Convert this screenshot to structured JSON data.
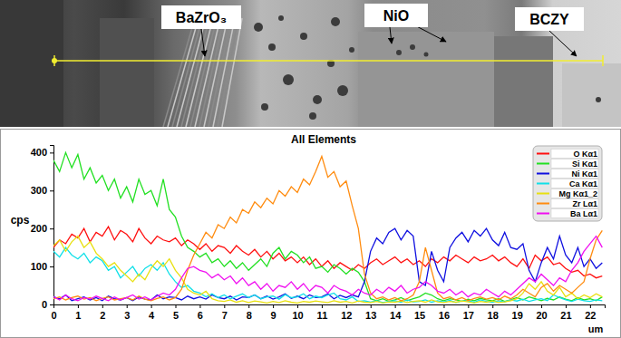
{
  "chart_data": {
    "type": "line",
    "title": "All Elements",
    "y_label": "cps",
    "x_label": "um",
    "annotations": [
      "BaZrO₃",
      "NiO",
      "BCZY"
    ],
    "grid": false,
    "legend": "top-right",
    "xlim": [
      0,
      22.6
    ],
    "xticks": [
      0,
      1,
      2,
      3,
      4,
      5,
      6,
      7,
      8,
      9,
      10,
      11,
      12,
      13,
      14,
      15,
      16,
      17,
      18,
      19,
      20,
      21,
      22
    ],
    "ylim": [
      0,
      420
    ],
    "yticks": [
      0,
      100,
      200,
      300,
      400
    ],
    "x": [
      0,
      0.25,
      0.5,
      0.75,
      1,
      1.25,
      1.5,
      1.75,
      2,
      2.25,
      2.5,
      2.75,
      3,
      3.25,
      3.5,
      3.75,
      4,
      4.25,
      4.5,
      4.75,
      5,
      5.25,
      5.5,
      5.75,
      6,
      6.25,
      6.5,
      6.75,
      7,
      7.25,
      7.5,
      7.75,
      8,
      8.25,
      8.5,
      8.75,
      9,
      9.25,
      9.5,
      9.75,
      10,
      10.25,
      10.5,
      10.75,
      11,
      11.25,
      11.5,
      11.75,
      12,
      12.25,
      12.5,
      12.75,
      13,
      13.25,
      13.5,
      13.75,
      14,
      14.25,
      14.5,
      14.75,
      15,
      15.25,
      15.5,
      15.75,
      16,
      16.25,
      16.5,
      16.75,
      17,
      17.25,
      17.5,
      17.75,
      18,
      18.25,
      18.5,
      18.75,
      19,
      19.25,
      19.5,
      19.75,
      20,
      20.25,
      20.5,
      20.75,
      21,
      21.25,
      21.5,
      21.75,
      22,
      22.25,
      22.5
    ],
    "series": [
      {
        "name": "O Kα1",
        "color": "#ff1010",
        "values": [
          150,
          170,
          160,
          185,
          175,
          200,
          165,
          190,
          180,
          205,
          170,
          195,
          185,
          165,
          200,
          175,
          160,
          180,
          170,
          165,
          175,
          155,
          170,
          160,
          145,
          160,
          140,
          155,
          150,
          135,
          155,
          140,
          130,
          145,
          125,
          140,
          120,
          135,
          115,
          125,
          110,
          125,
          105,
          120,
          100,
          115,
          95,
          110,
          100,
          90,
          105,
          95,
          110,
          120,
          105,
          115,
          125,
          110,
          120,
          105,
          115,
          100,
          120,
          110,
          125,
          115,
          130,
          120,
          110,
          125,
          115,
          120,
          130,
          115,
          125,
          110,
          100,
          120,
          95,
          130,
          115,
          125,
          105,
          110,
          95,
          85,
          90,
          75,
          80,
          70,
          75
        ]
      },
      {
        "name": "Si Kα1",
        "color": "#22e022",
        "values": [
          380,
          350,
          400,
          360,
          395,
          330,
          360,
          320,
          340,
          300,
          330,
          280,
          310,
          270,
          330,
          290,
          300,
          260,
          330,
          250,
          230,
          180,
          150,
          140,
          125,
          135,
          110,
          120,
          100,
          115,
          95,
          110,
          90,
          105,
          120,
          100,
          135,
          150,
          120,
          140,
          130,
          110,
          125,
          95,
          100,
          85,
          105,
          95,
          80,
          95,
          85,
          60,
          15,
          10,
          15,
          8,
          12,
          18,
          10,
          15,
          20,
          30,
          25,
          15,
          10,
          15,
          12,
          8,
          14,
          10,
          16,
          12,
          10,
          15,
          8,
          12,
          18,
          12,
          20,
          15,
          10,
          16,
          12,
          20,
          14,
          10,
          18,
          12,
          15,
          10,
          20
        ]
      },
      {
        "name": "Ni Kα1",
        "color": "#1010e0",
        "values": [
          20,
          15,
          25,
          10,
          15,
          20,
          12,
          18,
          10,
          22,
          15,
          12,
          18,
          10,
          20,
          14,
          12,
          25,
          15,
          20,
          18,
          12,
          22,
          15,
          20,
          14,
          25,
          18,
          15,
          22,
          12,
          20,
          18,
          25,
          15,
          22,
          14,
          20,
          28,
          16,
          22,
          15,
          25,
          18,
          20,
          28,
          15,
          24,
          18,
          25,
          20,
          60,
          140,
          175,
          160,
          190,
          200,
          170,
          195,
          180,
          60,
          50,
          140,
          90,
          60,
          150,
          175,
          190,
          165,
          195,
          180,
          200,
          170,
          155,
          190,
          150,
          145,
          160,
          90,
          60,
          110,
          150,
          120,
          180,
          130,
          110,
          150,
          100,
          120,
          95,
          110
        ]
      },
      {
        "name": "Ca Kα1",
        "color": "#10e0e8",
        "values": [
          140,
          125,
          150,
          130,
          120,
          135,
          110,
          125,
          115,
          90,
          100,
          70,
          85,
          100,
          75,
          95,
          105,
          90,
          110,
          80,
          60,
          45,
          50,
          35,
          30,
          20,
          28,
          18,
          25,
          15,
          22,
          28,
          18,
          25,
          15,
          20,
          22,
          14,
          26,
          18,
          20,
          28,
          15,
          22,
          18,
          25,
          30,
          15,
          12,
          20,
          8,
          10,
          6,
          10,
          5,
          8,
          10,
          6,
          12,
          7,
          8,
          12,
          6,
          10,
          7,
          11,
          5,
          9,
          10,
          6,
          12,
          8,
          6,
          10,
          7,
          12,
          9,
          14,
          8,
          12,
          15,
          10,
          25,
          18,
          12,
          8,
          14,
          10,
          8,
          12,
          10
        ]
      },
      {
        "name": "Mg Kα1_2",
        "color": "#e8e010",
        "values": [
          155,
          170,
          140,
          165,
          180,
          150,
          165,
          135,
          120,
          100,
          110,
          90,
          75,
          60,
          80,
          65,
          95,
          115,
          100,
          120,
          90,
          70,
          40,
          30,
          25,
          35,
          15,
          10,
          8,
          12,
          6,
          10,
          5,
          9,
          7,
          4,
          8,
          5,
          10,
          6,
          4,
          8,
          6,
          9,
          7,
          5,
          10,
          6,
          8,
          4,
          9,
          6,
          5,
          8,
          4,
          7,
          6,
          9,
          5,
          8,
          10,
          6,
          12,
          7,
          5,
          8,
          6,
          9,
          7,
          4,
          8,
          6,
          9,
          5,
          7,
          10,
          15,
          30,
          55,
          40,
          60,
          35,
          25,
          45,
          20,
          30,
          15,
          25,
          18,
          28,
          20
        ]
      },
      {
        "name": "Zr Lα1",
        "color": "#ff8c10",
        "values": [
          15,
          20,
          12,
          18,
          22,
          14,
          18,
          10,
          16,
          20,
          12,
          15,
          18,
          12,
          22,
          14,
          10,
          16,
          20,
          12,
          18,
          40,
          90,
          130,
          160,
          190,
          175,
          210,
          200,
          230,
          215,
          250,
          240,
          270,
          255,
          280,
          265,
          300,
          285,
          310,
          295,
          330,
          315,
          350,
          390,
          335,
          350,
          310,
          325,
          260,
          200,
          80,
          30,
          15,
          20,
          12,
          18,
          10,
          15,
          25,
          60,
          150,
          90,
          30,
          15,
          20,
          12,
          18,
          10,
          16,
          20,
          14,
          18,
          12,
          22,
          15,
          25,
          40,
          30,
          20,
          45,
          55,
          35,
          50,
          40,
          30,
          45,
          60,
          120,
          170,
          195
        ]
      },
      {
        "name": "Ba Lα1",
        "color": "#f010f0",
        "values": [
          20,
          12,
          25,
          15,
          10,
          18,
          14,
          22,
          16,
          10,
          20,
          12,
          18,
          25,
          14,
          20,
          12,
          22,
          30,
          25,
          40,
          70,
          95,
          100,
          90,
          85,
          70,
          80,
          65,
          75,
          55,
          70,
          50,
          60,
          40,
          55,
          35,
          50,
          45,
          60,
          40,
          55,
          35,
          50,
          45,
          30,
          50,
          40,
          35,
          25,
          40,
          30,
          25,
          40,
          30,
          45,
          35,
          50,
          30,
          40,
          45,
          60,
          50,
          35,
          30,
          40,
          25,
          35,
          20,
          30,
          25,
          40,
          30,
          20,
          35,
          25,
          40,
          55,
          70,
          60,
          80,
          65,
          50,
          70,
          60,
          90,
          110,
          140,
          160,
          180,
          150
        ]
      }
    ]
  }
}
